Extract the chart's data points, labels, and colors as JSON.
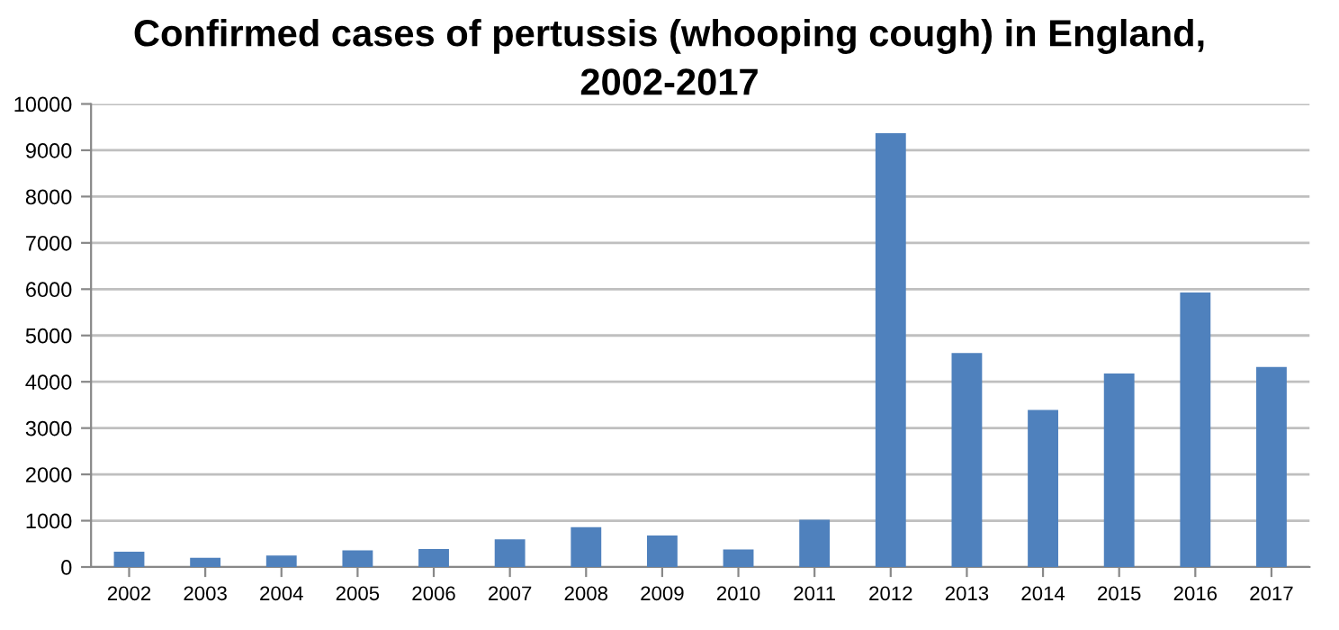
{
  "chart_data": {
    "type": "bar",
    "title": "Confirmed cases of pertussis (whooping cough) in England,\n2002-2017",
    "categories": [
      "2002",
      "2003",
      "2004",
      "2005",
      "2006",
      "2007",
      "2008",
      "2009",
      "2010",
      "2011",
      "2012",
      "2013",
      "2014",
      "2015",
      "2016",
      "2017"
    ],
    "values": [
      330,
      200,
      250,
      360,
      390,
      600,
      860,
      680,
      380,
      1020,
      9370,
      4620,
      3390,
      4180,
      5930,
      4320
    ],
    "color": "#4f81bd",
    "ylim": [
      0,
      10000
    ],
    "yticks": [
      0,
      1000,
      2000,
      3000,
      4000,
      5000,
      6000,
      7000,
      8000,
      9000,
      10000
    ],
    "grid": "y"
  }
}
